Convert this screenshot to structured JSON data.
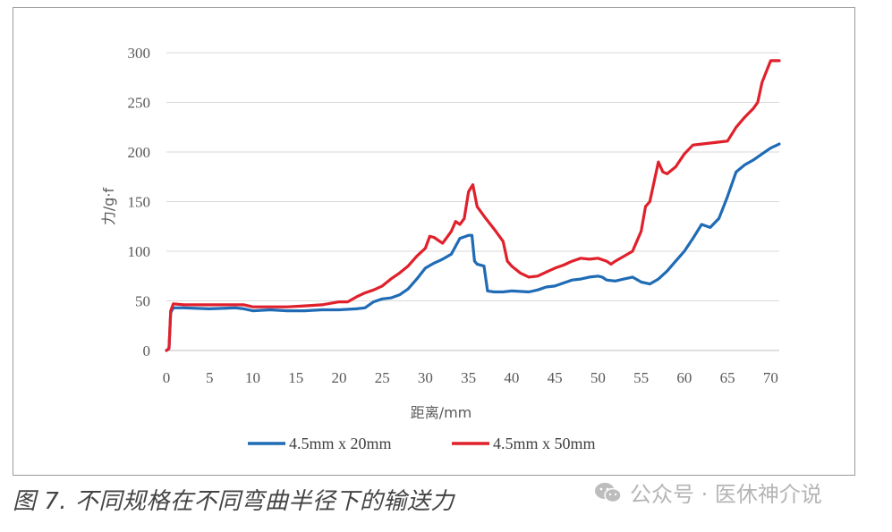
{
  "caption": "图 7. 不同规格在不同弯曲半径下的输送力",
  "watermark": {
    "text": "公众号 · 医休神介说",
    "icon": "wechat-icon"
  },
  "chart_data": {
    "type": "line",
    "title": "",
    "xlabel": "距离/mm",
    "ylabel": "力/g·f",
    "xlim": [
      0,
      71
    ],
    "ylim": [
      0,
      300
    ],
    "x_ticks": [
      0,
      5,
      10,
      15,
      20,
      25,
      30,
      35,
      40,
      45,
      50,
      55,
      60,
      65,
      70
    ],
    "y_ticks": [
      0,
      50,
      100,
      150,
      200,
      250,
      300
    ],
    "grid": "horizontal",
    "legend_position": "bottom",
    "series": [
      {
        "name": "4.5mm x 20mm",
        "color": "#1f6bb5",
        "points": [
          [
            0,
            0
          ],
          [
            0.3,
            2
          ],
          [
            0.5,
            38
          ],
          [
            0.8,
            43
          ],
          [
            2,
            43
          ],
          [
            5,
            42
          ],
          [
            8,
            43
          ],
          [
            9,
            42
          ],
          [
            10,
            40
          ],
          [
            12,
            41
          ],
          [
            14,
            40
          ],
          [
            16,
            40
          ],
          [
            18,
            41
          ],
          [
            20,
            41
          ],
          [
            22,
            42
          ],
          [
            23,
            43
          ],
          [
            24,
            49
          ],
          [
            25,
            52
          ],
          [
            26,
            53
          ],
          [
            27,
            56
          ],
          [
            28,
            62
          ],
          [
            29,
            72
          ],
          [
            30,
            83
          ],
          [
            31,
            88
          ],
          [
            32,
            92
          ],
          [
            33,
            97
          ],
          [
            34,
            113
          ],
          [
            35,
            116
          ],
          [
            35.4,
            116
          ],
          [
            35.7,
            90
          ],
          [
            36,
            87
          ],
          [
            36.8,
            85
          ],
          [
            37.2,
            60
          ],
          [
            38,
            59
          ],
          [
            39,
            59
          ],
          [
            40,
            60
          ],
          [
            42,
            59
          ],
          [
            43,
            61
          ],
          [
            44,
            64
          ],
          [
            45,
            65
          ],
          [
            46,
            68
          ],
          [
            47,
            71
          ],
          [
            48,
            72
          ],
          [
            49,
            74
          ],
          [
            50,
            75
          ],
          [
            50.5,
            74
          ],
          [
            51,
            71
          ],
          [
            52,
            70
          ],
          [
            53,
            72
          ],
          [
            54,
            74
          ],
          [
            55,
            69
          ],
          [
            56,
            67
          ],
          [
            57,
            72
          ],
          [
            58,
            80
          ],
          [
            59,
            90
          ],
          [
            60,
            100
          ],
          [
            61,
            113
          ],
          [
            62,
            127
          ],
          [
            63,
            124
          ],
          [
            64,
            133
          ],
          [
            65,
            155
          ],
          [
            66,
            180
          ],
          [
            67,
            187
          ],
          [
            68,
            192
          ],
          [
            69,
            198
          ],
          [
            70,
            204
          ],
          [
            71,
            208
          ]
        ]
      },
      {
        "name": "4.5mm x 50mm",
        "color": "#e0202b",
        "points": [
          [
            0,
            0
          ],
          [
            0.3,
            2
          ],
          [
            0.5,
            40
          ],
          [
            0.8,
            47
          ],
          [
            2,
            46
          ],
          [
            5,
            46
          ],
          [
            8,
            46
          ],
          [
            9,
            46
          ],
          [
            10,
            44
          ],
          [
            12,
            44
          ],
          [
            14,
            44
          ],
          [
            16,
            45
          ],
          [
            18,
            46
          ],
          [
            20,
            49
          ],
          [
            21,
            49
          ],
          [
            22,
            54
          ],
          [
            23,
            58
          ],
          [
            24,
            61
          ],
          [
            25,
            65
          ],
          [
            26,
            72
          ],
          [
            27,
            78
          ],
          [
            28,
            85
          ],
          [
            29,
            95
          ],
          [
            30,
            103
          ],
          [
            30.5,
            115
          ],
          [
            31,
            114
          ],
          [
            32,
            108
          ],
          [
            33,
            120
          ],
          [
            33.5,
            130
          ],
          [
            34,
            127
          ],
          [
            34.5,
            133
          ],
          [
            35,
            160
          ],
          [
            35.5,
            167
          ],
          [
            36,
            145
          ],
          [
            37,
            133
          ],
          [
            38,
            122
          ],
          [
            39,
            110
          ],
          [
            39.5,
            90
          ],
          [
            40,
            85
          ],
          [
            41,
            78
          ],
          [
            42,
            74
          ],
          [
            43,
            75
          ],
          [
            44,
            79
          ],
          [
            45,
            83
          ],
          [
            46,
            86
          ],
          [
            47,
            90
          ],
          [
            48,
            93
          ],
          [
            49,
            92
          ],
          [
            50,
            93
          ],
          [
            51,
            90
          ],
          [
            51.5,
            87
          ],
          [
            52,
            90
          ],
          [
            53,
            95
          ],
          [
            54,
            100
          ],
          [
            55,
            120
          ],
          [
            55.5,
            145
          ],
          [
            56,
            150
          ],
          [
            56.5,
            170
          ],
          [
            57,
            190
          ],
          [
            57.5,
            180
          ],
          [
            58,
            178
          ],
          [
            59,
            185
          ],
          [
            60,
            198
          ],
          [
            61,
            207
          ],
          [
            62,
            208
          ],
          [
            63,
            209
          ],
          [
            64,
            210
          ],
          [
            65,
            211
          ],
          [
            66,
            225
          ],
          [
            67,
            235
          ],
          [
            68,
            244
          ],
          [
            68.5,
            250
          ],
          [
            69,
            270
          ],
          [
            69.5,
            281
          ],
          [
            70,
            292
          ],
          [
            71,
            292
          ]
        ]
      }
    ]
  }
}
